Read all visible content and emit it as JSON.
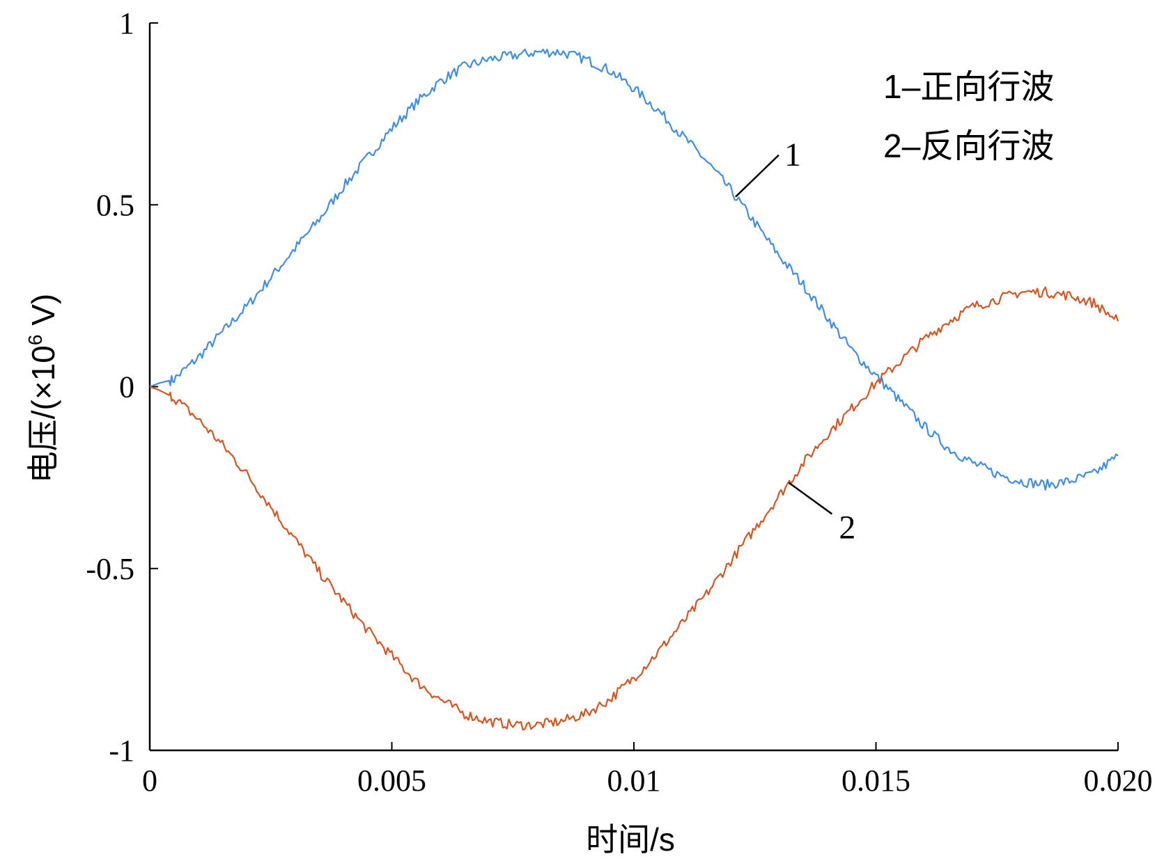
{
  "chart_data": {
    "type": "line",
    "title": "",
    "xlabel": "时间/s",
    "ylabel": {
      "prefix": "电压/(×10",
      "exponent": "6",
      "suffix": " V)"
    },
    "xlim": [
      0,
      0.02
    ],
    "ylim": [
      -1,
      1
    ],
    "x_ticks": [
      0,
      0.005,
      0.01,
      0.015,
      0.02
    ],
    "x_tick_labels": [
      "0",
      "0.005",
      "0.01",
      "0.015",
      "0.020"
    ],
    "y_ticks": [
      -1,
      -0.5,
      0,
      0.5,
      1
    ],
    "y_tick_labels": [
      "-1",
      "-0.5",
      "0",
      "0.5",
      "1"
    ],
    "grid": false,
    "legend": {
      "placement": "top-right",
      "entries": [
        "1–正向行波",
        "2–反向行波"
      ]
    },
    "series": [
      {
        "name": "正向行波",
        "label": "1",
        "color": "#3d8ee8",
        "x": [
          0,
          0.0002,
          0.0005,
          0.001,
          0.0015,
          0.002,
          0.0025,
          0.003,
          0.0035,
          0.004,
          0.0045,
          0.005,
          0.0055,
          0.006,
          0.0065,
          0.007,
          0.0075,
          0.008,
          0.0085,
          0.009,
          0.0095,
          0.01,
          0.0105,
          0.011,
          0.0115,
          0.012,
          0.0125,
          0.013,
          0.0135,
          0.014,
          0.0145,
          0.015,
          0.0155,
          0.016,
          0.0165,
          0.017,
          0.0175,
          0.018,
          0.0185,
          0.019,
          0.0195,
          0.02
        ],
        "values": [
          0,
          0.01,
          0.02,
          0.08,
          0.15,
          0.22,
          0.3,
          0.38,
          0.46,
          0.55,
          0.63,
          0.71,
          0.78,
          0.84,
          0.88,
          0.9,
          0.91,
          0.92,
          0.92,
          0.9,
          0.87,
          0.82,
          0.76,
          0.69,
          0.62,
          0.54,
          0.45,
          0.36,
          0.28,
          0.19,
          0.1,
          0.03,
          -0.04,
          -0.11,
          -0.17,
          -0.21,
          -0.24,
          -0.26,
          -0.27,
          -0.26,
          -0.24,
          -0.19
        ]
      },
      {
        "name": "反向行波",
        "label": "2",
        "color": "#d9541e",
        "x": [
          0,
          0.0002,
          0.0005,
          0.001,
          0.0015,
          0.002,
          0.0025,
          0.003,
          0.0035,
          0.004,
          0.0045,
          0.005,
          0.0055,
          0.006,
          0.0065,
          0.007,
          0.0075,
          0.008,
          0.0085,
          0.009,
          0.0095,
          0.01,
          0.0105,
          0.011,
          0.0115,
          0.012,
          0.0125,
          0.013,
          0.0135,
          0.014,
          0.0145,
          0.015,
          0.0155,
          0.016,
          0.0165,
          0.017,
          0.0175,
          0.018,
          0.0185,
          0.019,
          0.0195,
          0.02
        ],
        "values": [
          0,
          -0.01,
          -0.03,
          -0.09,
          -0.16,
          -0.24,
          -0.33,
          -0.42,
          -0.51,
          -0.59,
          -0.67,
          -0.74,
          -0.81,
          -0.86,
          -0.9,
          -0.92,
          -0.93,
          -0.93,
          -0.92,
          -0.9,
          -0.86,
          -0.8,
          -0.73,
          -0.65,
          -0.57,
          -0.48,
          -0.39,
          -0.3,
          -0.21,
          -0.13,
          -0.06,
          0.01,
          0.07,
          0.13,
          0.18,
          0.22,
          0.24,
          0.26,
          0.26,
          0.25,
          0.23,
          0.18
        ]
      }
    ]
  }
}
